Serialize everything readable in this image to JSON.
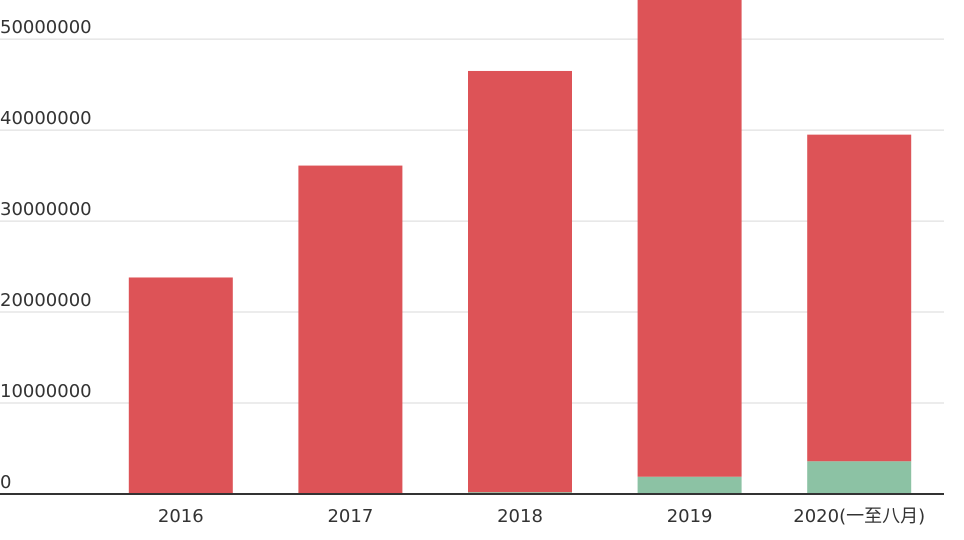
{
  "chart_data": {
    "type": "stacked-bar",
    "categories": [
      "2016",
      "2017",
      "2018",
      "2019",
      "2020(一至八月)"
    ],
    "series": [
      {
        "color": "#8cc2a4",
        "values": [
          0,
          0,
          200000,
          1900000,
          3600000
        ]
      },
      {
        "color": "#dd5357",
        "values": [
          23800000,
          36100000,
          46300000,
          53100000,
          35900000
        ]
      }
    ],
    "ylim": [
      0,
      54300000
    ],
    "yticks": [
      0,
      10000000,
      20000000,
      30000000,
      40000000,
      50000000
    ],
    "grid": true
  }
}
